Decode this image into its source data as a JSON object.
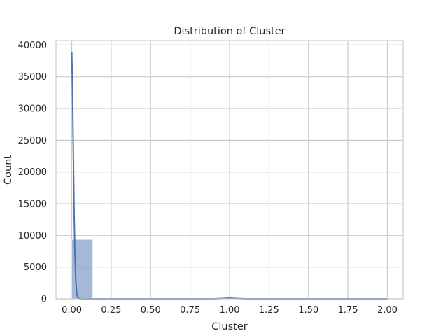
{
  "chart_data": {
    "type": "bar",
    "title": "Distribution of Cluster",
    "xlabel": "Cluster",
    "ylabel": "Count",
    "xlim": [
      -0.1,
      2.1
    ],
    "ylim": [
      0,
      40700
    ],
    "grid": true,
    "x_ticks": [
      "0.00",
      "0.25",
      "0.50",
      "0.75",
      "1.00",
      "1.25",
      "1.50",
      "1.75",
      "2.00"
    ],
    "y_ticks": [
      "0",
      "5000",
      "10000",
      "15000",
      "20000",
      "25000",
      "30000",
      "35000",
      "40000"
    ],
    "bins": [
      {
        "start": 0.0,
        "end": 0.133,
        "count": 9350
      },
      {
        "start": 0.133,
        "end": 0.267,
        "count": 0
      },
      {
        "start": 0.267,
        "end": 0.4,
        "count": 0
      },
      {
        "start": 0.4,
        "end": 0.533,
        "count": 0
      },
      {
        "start": 0.533,
        "end": 0.667,
        "count": 0
      },
      {
        "start": 0.667,
        "end": 0.8,
        "count": 0
      },
      {
        "start": 0.8,
        "end": 0.933,
        "count": 0
      },
      {
        "start": 0.933,
        "end": 1.067,
        "count": 12
      },
      {
        "start": 1.067,
        "end": 1.2,
        "count": 0
      },
      {
        "start": 1.2,
        "end": 1.333,
        "count": 0
      },
      {
        "start": 1.333,
        "end": 1.467,
        "count": 0
      },
      {
        "start": 1.467,
        "end": 1.6,
        "count": 0
      },
      {
        "start": 1.6,
        "end": 1.733,
        "count": 0
      },
      {
        "start": 1.733,
        "end": 1.867,
        "count": 0
      },
      {
        "start": 1.867,
        "end": 2.0,
        "count": 3
      }
    ],
    "kde": {
      "x": [
        0.0,
        0.005,
        0.01,
        0.015,
        0.02,
        0.025,
        0.03,
        0.035,
        0.04,
        0.05,
        0.07,
        0.1,
        0.2,
        0.5,
        0.9,
        0.97,
        1.0,
        1.03,
        1.1,
        1.5,
        1.95,
        2.0
      ],
      "y": [
        38900,
        33000,
        23000,
        13500,
        7000,
        3200,
        1300,
        500,
        150,
        30,
        0,
        0,
        0,
        0,
        0,
        70,
        110,
        70,
        0,
        0,
        0,
        0
      ]
    },
    "colors": {
      "bar_fill": "#4c72b0",
      "bar_opacity": 0.5,
      "kde_line": "#4c72b0",
      "grid": "#cccccc",
      "spine": "#cccccc"
    }
  }
}
